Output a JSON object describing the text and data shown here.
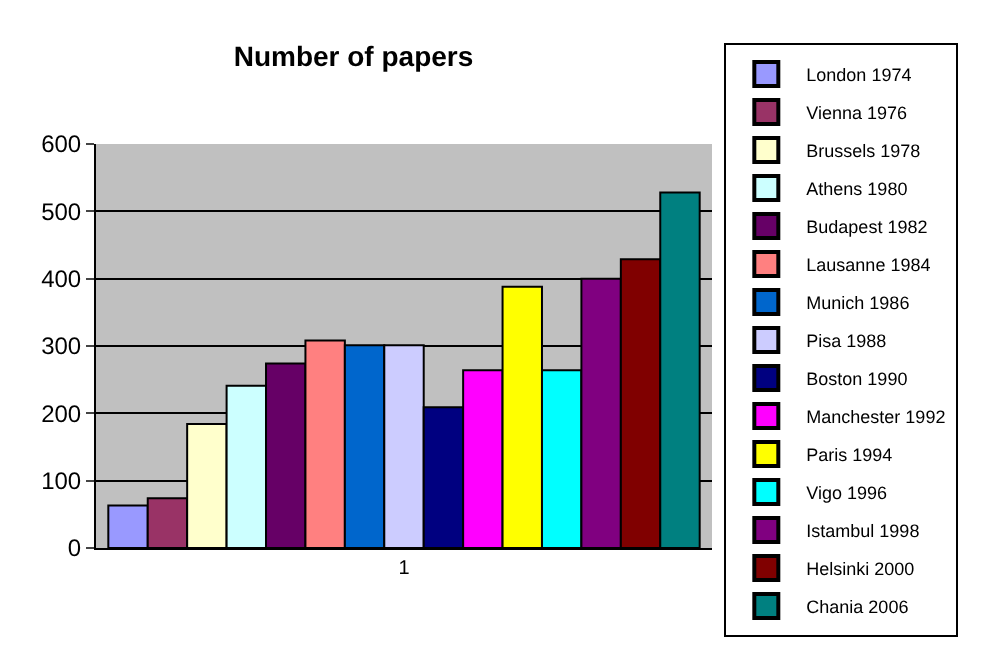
{
  "chart_data": {
    "type": "bar",
    "title": "Number of papers",
    "categories": [
      "1"
    ],
    "series": [
      {
        "name": "London 1974",
        "color": "#9999ff",
        "values": [
          63
        ]
      },
      {
        "name": "Vienna 1976",
        "color": "#993366",
        "values": [
          74
        ]
      },
      {
        "name": "Brussels 1978",
        "color": "#ffffcc",
        "values": [
          184
        ]
      },
      {
        "name": "Athens 1980",
        "color": "#ccffff",
        "values": [
          241
        ]
      },
      {
        "name": "Budapest 1982",
        "color": "#660066",
        "values": [
          274
        ]
      },
      {
        "name": "Lausanne 1984",
        "color": "#ff8080",
        "values": [
          308
        ]
      },
      {
        "name": "Munich 1986",
        "color": "#0066cc",
        "values": [
          301
        ]
      },
      {
        "name": "Pisa 1988",
        "color": "#ccccff",
        "values": [
          301
        ]
      },
      {
        "name": "Boston 1990",
        "color": "#000080",
        "values": [
          209
        ]
      },
      {
        "name": "Manchester 1992",
        "color": "#ff00ff",
        "values": [
          264
        ]
      },
      {
        "name": "Paris 1994",
        "color": "#ffff00",
        "values": [
          388
        ]
      },
      {
        "name": "Vigo 1996",
        "color": "#00ffff",
        "values": [
          264
        ]
      },
      {
        "name": "Istambul 1998",
        "color": "#800080",
        "values": [
          400
        ]
      },
      {
        "name": "Helsinki 2000",
        "color": "#800000",
        "values": [
          429
        ]
      },
      {
        "name": "Chania 2006",
        "color": "#008080",
        "values": [
          528
        ]
      }
    ],
    "ylim": [
      0,
      600
    ],
    "yticks": [
      0,
      100,
      200,
      300,
      400,
      500,
      600
    ],
    "grid": "y",
    "legend": "right"
  }
}
